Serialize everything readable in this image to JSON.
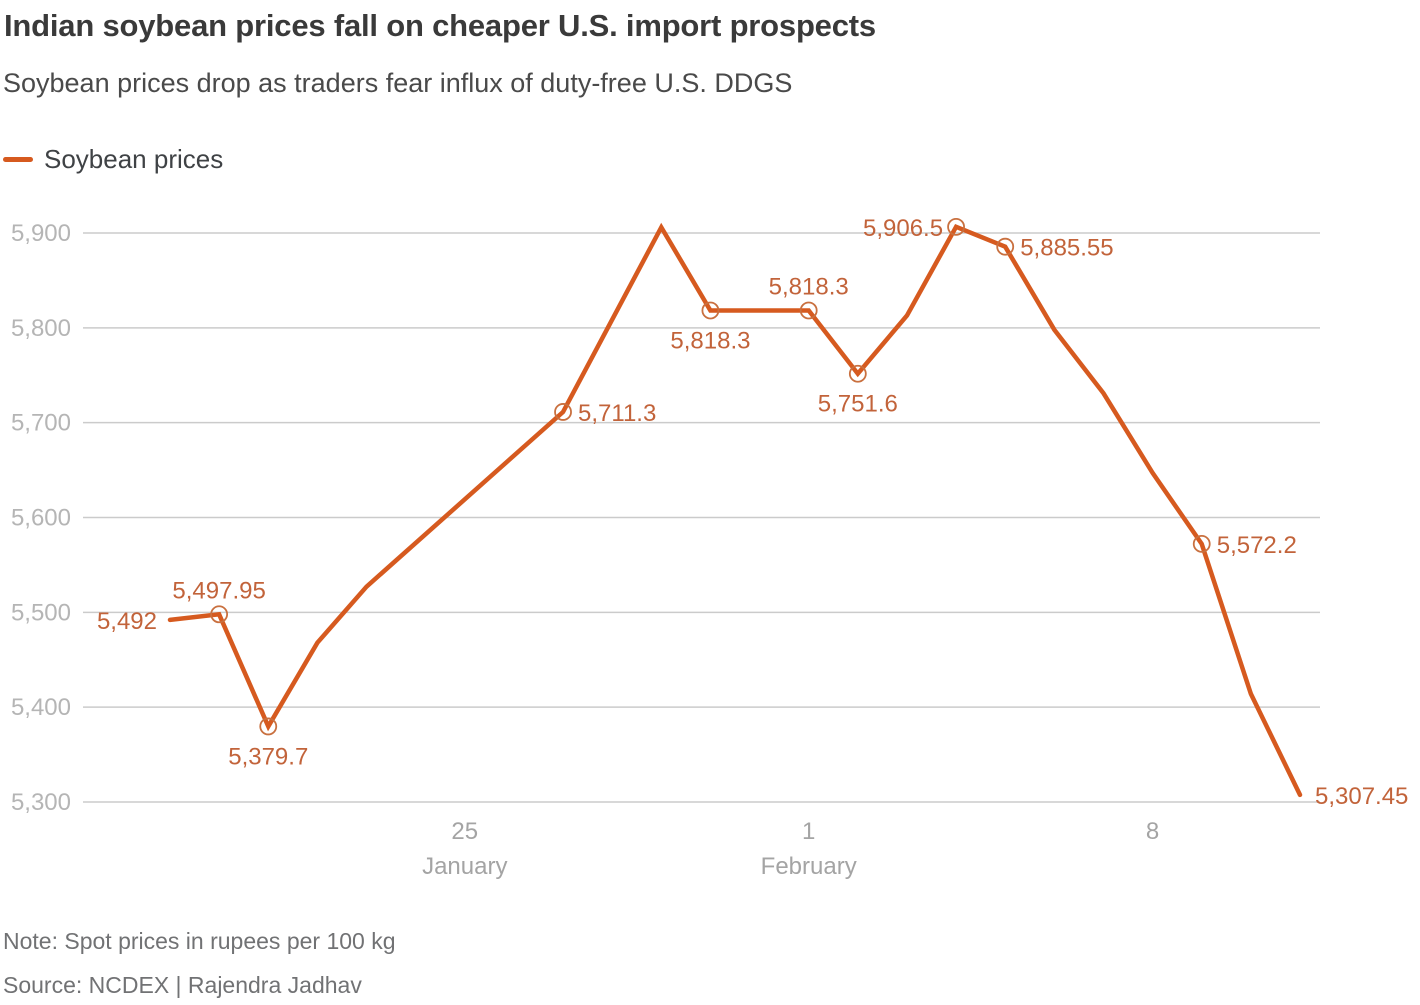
{
  "header": {
    "title": "Indian soybean prices fall on cheaper U.S. import prospects",
    "subtitle": "Soybean prices drop as traders fear influx of duty-free U.S. DDGS"
  },
  "legend": {
    "label": "Soybean prices"
  },
  "footer": {
    "note": "Note: Spot prices in rupees per 100 kg",
    "source": "Source: NCDEX | Rajendra Jadhav"
  },
  "colors": {
    "line": "#d65a1f",
    "marker_stroke": "#c9703f",
    "data_label": "#c2633a",
    "grid": "#cbcbcb",
    "y_tick_label": "#b5b5b5",
    "x_tick_label": "#a4a4a4",
    "title": "#3a3a3a",
    "subtitle": "#4a4a4a",
    "footer_text": "#717274"
  },
  "chart_data": {
    "type": "line",
    "title": "Indian soybean prices fall on cheaper U.S. import prospects",
    "series_name": "Soybean prices",
    "grid": "horizontal-only",
    "legend_position": "top-left",
    "ylim": [
      5300,
      5940
    ],
    "y_axis": {
      "ticks": [
        {
          "value": 5300,
          "label": "5,300"
        },
        {
          "value": 5400,
          "label": "5,400"
        },
        {
          "value": 5500,
          "label": "5,500"
        },
        {
          "value": 5600,
          "label": "5,600"
        },
        {
          "value": 5700,
          "label": "5,700"
        },
        {
          "value": 5800,
          "label": "5,800"
        },
        {
          "value": 5900,
          "label": "5,900"
        }
      ]
    },
    "x_axis": {
      "unit": "trading days (19 Jan – 11 Feb)",
      "ticks": [
        {
          "day": 6,
          "line1": "25",
          "line2": "January"
        },
        {
          "day": 13,
          "line1": "1",
          "line2": "February"
        },
        {
          "day": 20,
          "line1": "8",
          "line2": ""
        }
      ]
    },
    "points": [
      {
        "day": 0,
        "value": 5492,
        "label": "5,492",
        "label_pos": "left",
        "marker": false
      },
      {
        "day": 1,
        "value": 5497.95,
        "label": "5,497.95",
        "label_pos": "above",
        "marker": true
      },
      {
        "day": 2,
        "value": 5379.7,
        "label": "5,379.7",
        "label_pos": "below",
        "marker": true
      },
      {
        "day": 3,
        "value": 5468,
        "label": null,
        "label_pos": null,
        "marker": false
      },
      {
        "day": 4,
        "value": 5527,
        "label": null,
        "label_pos": null,
        "marker": false
      },
      {
        "day": 8,
        "value": 5711.3,
        "label": "5,711.3",
        "label_pos": "right",
        "marker": true
      },
      {
        "day": 10,
        "value": 5906,
        "label": null,
        "label_pos": null,
        "marker": false
      },
      {
        "day": 11,
        "value": 5818.3,
        "label": "5,818.3",
        "label_pos": "below",
        "marker": true
      },
      {
        "day": 13,
        "value": 5818.3,
        "label": "5,818.3",
        "label_pos": "above",
        "marker": true
      },
      {
        "day": 14,
        "value": 5751.6,
        "label": "5,751.6",
        "label_pos": "below",
        "marker": true
      },
      {
        "day": 15,
        "value": 5813,
        "label": null,
        "label_pos": null,
        "marker": false
      },
      {
        "day": 16,
        "value": 5906.5,
        "label": "5,906.5",
        "label_pos": "left",
        "marker": true
      },
      {
        "day": 17,
        "value": 5885.55,
        "label": "5,885.55",
        "label_pos": "right",
        "marker": true
      },
      {
        "day": 18,
        "value": 5798,
        "label": null,
        "label_pos": null,
        "marker": false
      },
      {
        "day": 19,
        "value": 5731,
        "label": null,
        "label_pos": null,
        "marker": false
      },
      {
        "day": 20,
        "value": 5647,
        "label": null,
        "label_pos": null,
        "marker": false
      },
      {
        "day": 21,
        "value": 5572.2,
        "label": "5,572.2",
        "label_pos": "right",
        "marker": true
      },
      {
        "day": 22,
        "value": 5414,
        "label": null,
        "label_pos": null,
        "marker": false
      },
      {
        "day": 23,
        "value": 5307.45,
        "label": "5,307.45",
        "label_pos": "right",
        "marker": false
      }
    ]
  }
}
